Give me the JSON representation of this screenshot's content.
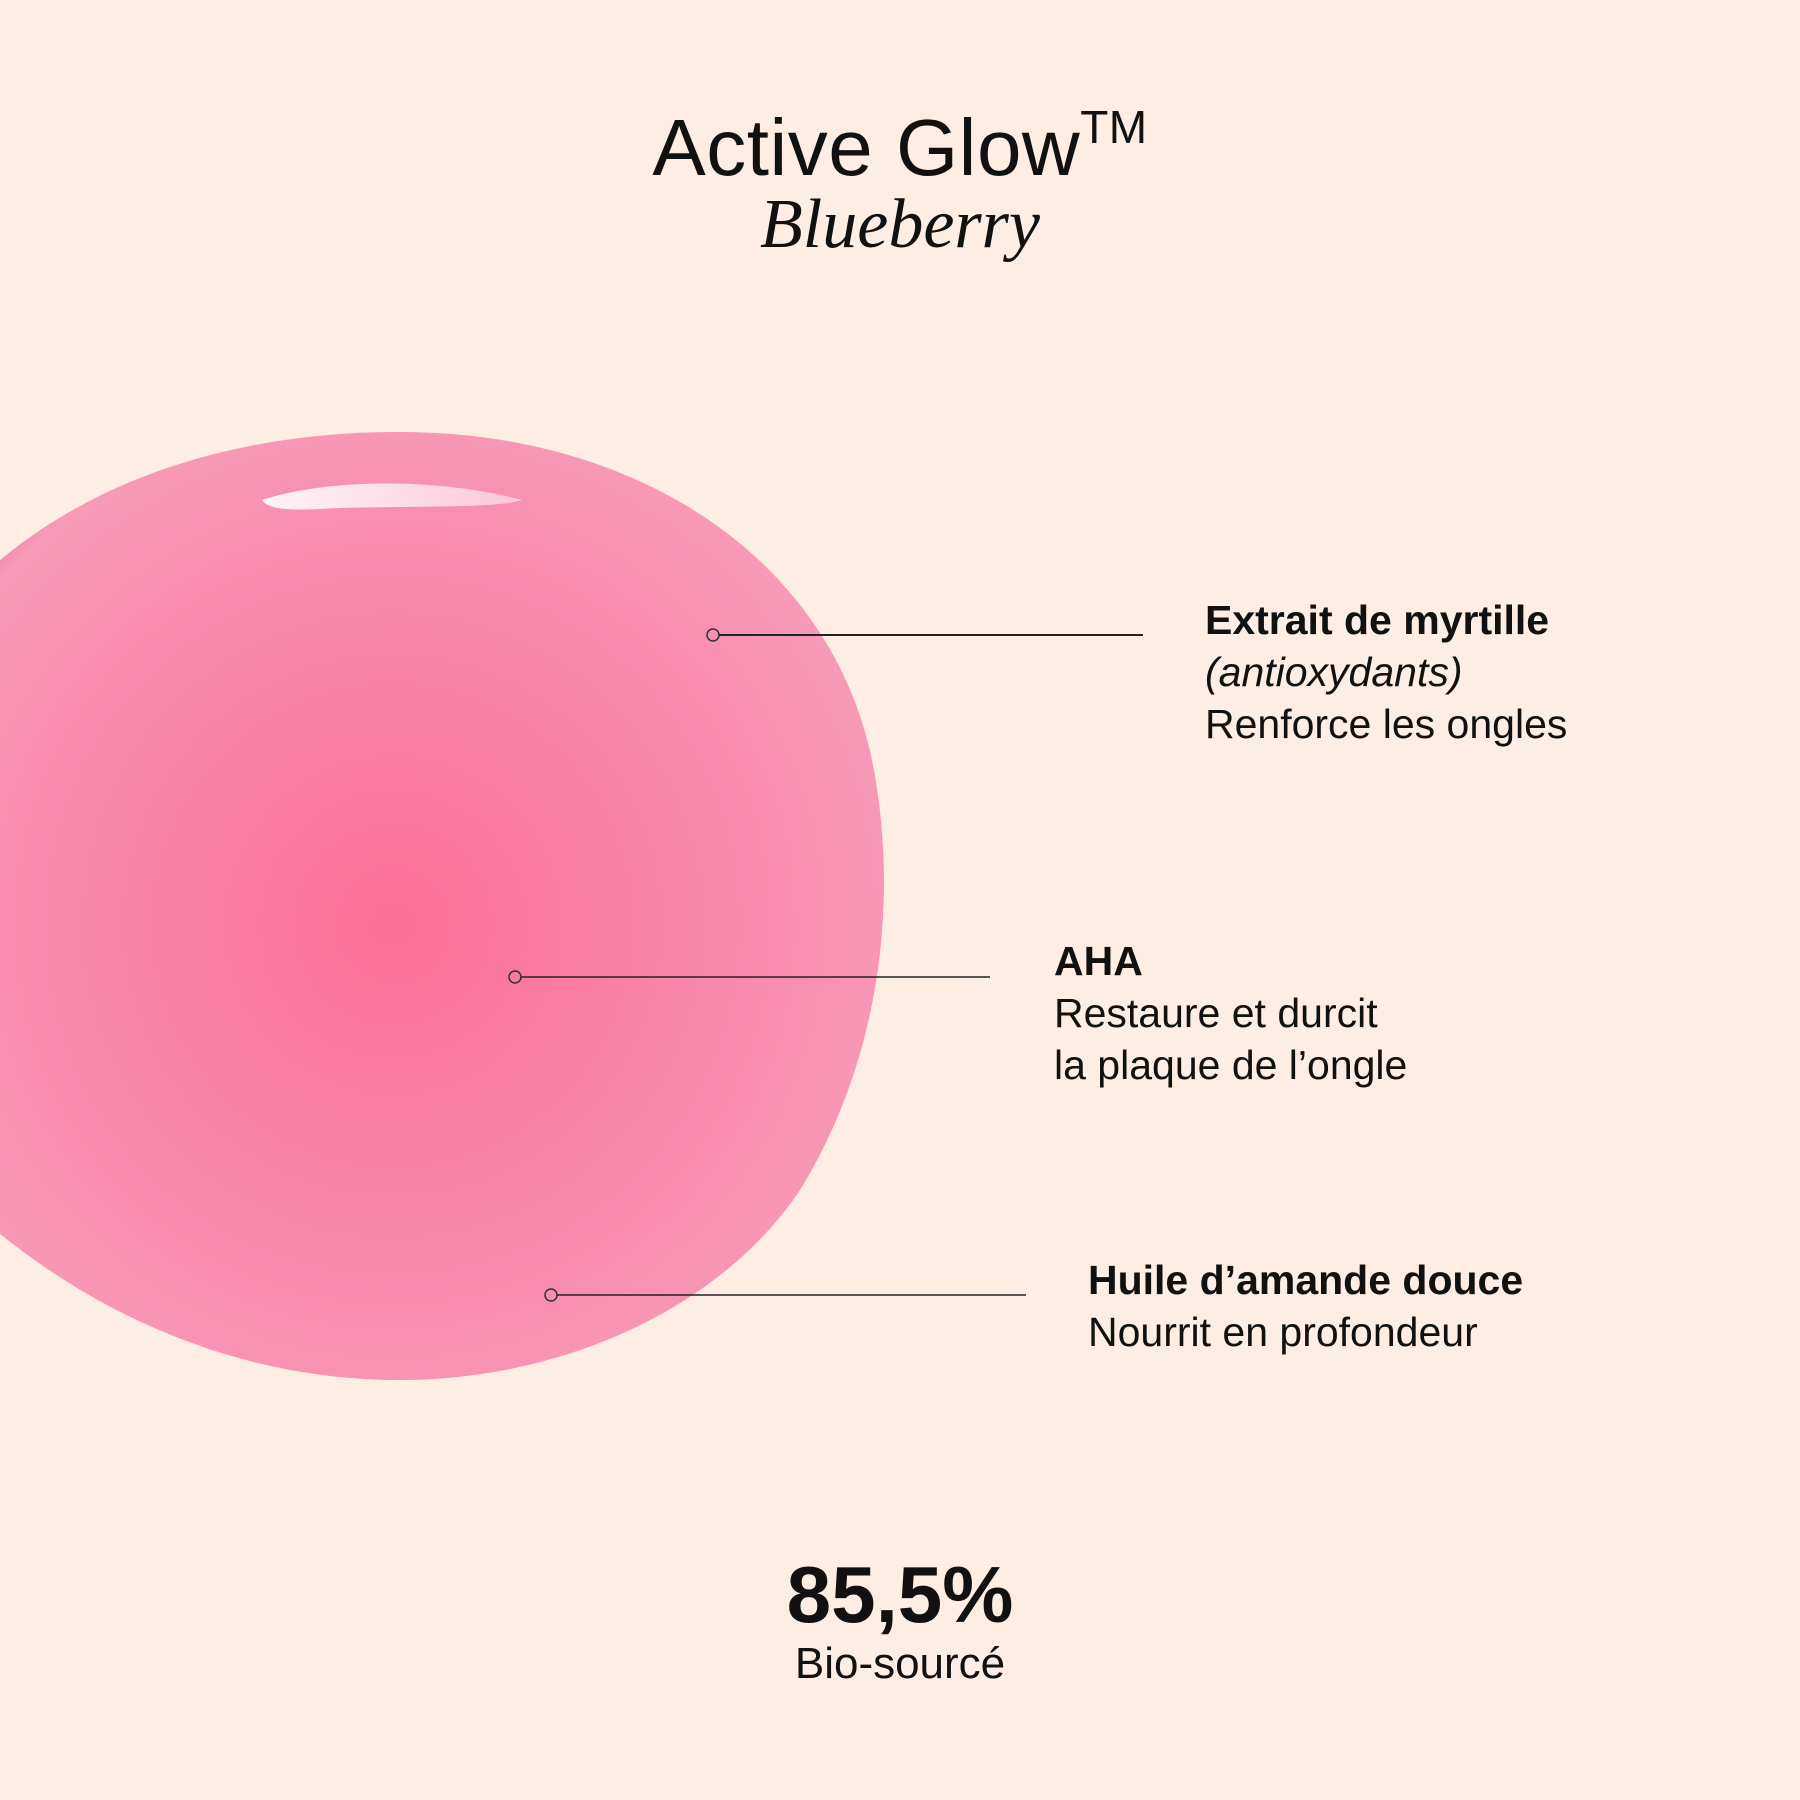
{
  "header": {
    "title": "Active Glow",
    "trademark": "TM",
    "subtitle": "Blueberry"
  },
  "colors": {
    "background": "#fdede3",
    "drop": "#fa7aa0",
    "text": "#111111"
  },
  "ingredients": [
    {
      "name": "Extrait de myrtille",
      "note": "(antioxydants)",
      "lines": [
        "Renforce les ongles"
      ]
    },
    {
      "name": "AHA",
      "lines": [
        "Restaure et durcit",
        "la plaque de l’ongle"
      ]
    },
    {
      "name": "Huile d’amande douce",
      "lines": [
        "Nourrit en profondeur"
      ]
    }
  ],
  "stat": {
    "value": "85,5%",
    "label": "Bio-sourcé"
  }
}
